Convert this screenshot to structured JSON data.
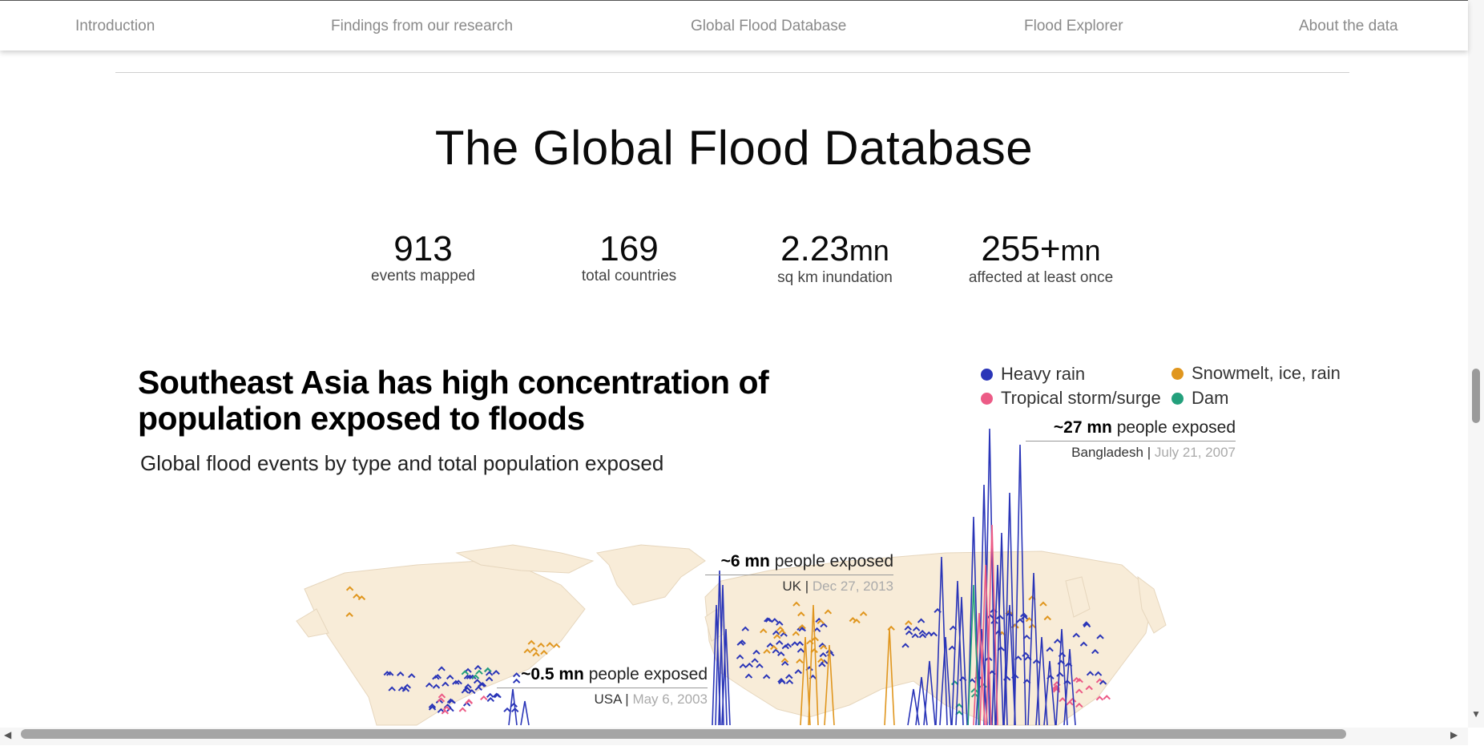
{
  "nav": {
    "items": [
      {
        "label": "Introduction"
      },
      {
        "label": "Findings from our research"
      },
      {
        "label": "Global Flood Database"
      },
      {
        "label": "Flood Explorer"
      },
      {
        "label": "About the data"
      }
    ]
  },
  "page": {
    "title": "The Global Flood Database"
  },
  "stats": [
    {
      "value": "913",
      "unit": "",
      "label": "events mapped"
    },
    {
      "value": "169",
      "unit": "",
      "label": "total countries"
    },
    {
      "value": "2.23",
      "unit": "mn",
      "label": "sq km inundation"
    },
    {
      "value": "255+",
      "unit": "mn",
      "label": "affected at least once"
    }
  ],
  "chart": {
    "title": "Southeast Asia has high concentration of population exposed to floods",
    "subtitle": "Global flood events by type and total population exposed",
    "legend": [
      {
        "label": "Heavy rain",
        "color": "#2a35b8"
      },
      {
        "label": "Snowmelt, ice, rain",
        "color": "#e0961e"
      },
      {
        "label": "Tropical storm/surge",
        "color": "#ec5b86"
      },
      {
        "label": "Dam",
        "color": "#23a07c"
      }
    ],
    "annotations": [
      {
        "value": "~27 mn",
        "text": "people exposed",
        "place": "Bangladesh",
        "date": "July 21, 2007"
      },
      {
        "value": "~6 mn",
        "text": "people exposed",
        "place": "UK",
        "date": "Dec 27, 2013"
      },
      {
        "value": "~0.5 mn",
        "text": "people exposed",
        "place": "USA",
        "date": "May 6, 2003"
      }
    ],
    "colors": {
      "land": "#f8ecd8",
      "heavy_rain": "#2a35b8",
      "snowmelt": "#e0961e",
      "tropical": "#ec5b86",
      "dam": "#23a07c"
    }
  },
  "chart_data": {
    "type": "scatter",
    "title": "Southeast Asia has high concentration of population exposed to floods",
    "subtitle": "Global flood events by type and total population exposed",
    "series": [
      {
        "name": "Heavy rain"
      },
      {
        "name": "Snowmelt, ice, rain"
      },
      {
        "name": "Tropical storm/surge"
      },
      {
        "name": "Dam"
      }
    ],
    "highlighted_events": [
      {
        "country": "Bangladesh",
        "date": "July 21, 2007",
        "population_exposed_mn": 27
      },
      {
        "country": "UK",
        "date": "Dec 27, 2013",
        "population_exposed_mn": 6
      },
      {
        "country": "USA",
        "date": "May 6, 2003",
        "population_exposed_mn": 0.5
      }
    ],
    "legend_position": "top-right"
  }
}
